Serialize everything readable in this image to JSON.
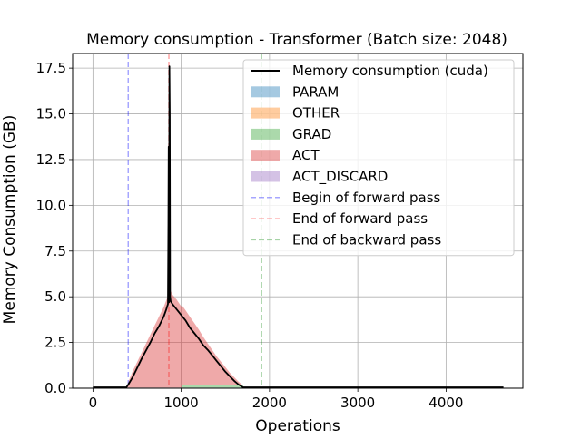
{
  "chart_data": {
    "type": "area",
    "title": "Memory consumption - Transformer (Batch size: 2048)",
    "xlabel": "Operations",
    "ylabel": "Memory Consumption (GB)",
    "xlim": [
      -230,
      4870
    ],
    "ylim": [
      0,
      18.3
    ],
    "x_ticks": [
      0,
      1000,
      2000,
      3000,
      4000
    ],
    "x_tick_labels": [
      "0",
      "1000",
      "2000",
      "3000",
      "4000"
    ],
    "y_ticks": [
      0.0,
      2.5,
      5.0,
      7.5,
      10.0,
      12.5,
      15.0,
      17.5
    ],
    "y_tick_labels": [
      "0.0",
      "2.5",
      "5.0",
      "7.5",
      "10.0",
      "12.5",
      "15.0",
      "17.5"
    ],
    "grid": true,
    "legend_position": "top-right",
    "series": [
      {
        "name": "Memory consumption (cuda)",
        "kind": "line",
        "color": "#000000",
        "points": [
          [
            0,
            0.05
          ],
          [
            380,
            0.05
          ],
          [
            400,
            0.2
          ],
          [
            450,
            0.6
          ],
          [
            500,
            1.1
          ],
          [
            550,
            1.6
          ],
          [
            600,
            2.05
          ],
          [
            650,
            2.5
          ],
          [
            700,
            3.0
          ],
          [
            750,
            3.4
          ],
          [
            800,
            3.9
          ],
          [
            830,
            4.3
          ],
          [
            850,
            4.6
          ],
          [
            855,
            9.0
          ],
          [
            858,
            13.2
          ],
          [
            862,
            4.7
          ],
          [
            866,
            17.6
          ],
          [
            870,
            15.0
          ],
          [
            874,
            5.0
          ],
          [
            880,
            4.75
          ],
          [
            900,
            4.6
          ],
          [
            950,
            4.3
          ],
          [
            1000,
            4.0
          ],
          [
            1050,
            3.7
          ],
          [
            1100,
            3.3
          ],
          [
            1150,
            3.0
          ],
          [
            1200,
            2.7
          ],
          [
            1250,
            2.35
          ],
          [
            1300,
            2.1
          ],
          [
            1350,
            1.8
          ],
          [
            1400,
            1.5
          ],
          [
            1450,
            1.2
          ],
          [
            1500,
            0.9
          ],
          [
            1550,
            0.65
          ],
          [
            1600,
            0.4
          ],
          [
            1650,
            0.2
          ],
          [
            1700,
            0.05
          ],
          [
            4650,
            0.05
          ]
        ]
      },
      {
        "name": "PARAM",
        "kind": "area",
        "color": "#1f77b4",
        "points": [
          [
            0,
            0.03
          ],
          [
            4650,
            0.03
          ]
        ]
      },
      {
        "name": "OTHER",
        "kind": "area",
        "color": "#ff7f0e",
        "points": [
          [
            0,
            0.0
          ],
          [
            4650,
            0.0
          ]
        ]
      },
      {
        "name": "GRAD",
        "kind": "area",
        "color": "#2ca02c",
        "points": [
          [
            0,
            0.0
          ],
          [
            1000,
            0.0
          ],
          [
            1010,
            0.12
          ],
          [
            1700,
            0.12
          ],
          [
            1710,
            0.0
          ],
          [
            4650,
            0.0
          ]
        ]
      },
      {
        "name": "ACT",
        "kind": "area",
        "color": "#d62728",
        "points": [
          [
            380,
            0.0
          ],
          [
            400,
            0.3
          ],
          [
            450,
            0.9
          ],
          [
            500,
            1.4
          ],
          [
            550,
            1.9
          ],
          [
            600,
            2.4
          ],
          [
            650,
            2.9
          ],
          [
            700,
            3.4
          ],
          [
            750,
            3.9
          ],
          [
            800,
            4.4
          ],
          [
            840,
            4.9
          ],
          [
            870,
            5.4
          ],
          [
            900,
            5.1
          ],
          [
            950,
            4.8
          ],
          [
            1000,
            4.45
          ],
          [
            1050,
            4.1
          ],
          [
            1100,
            3.75
          ],
          [
            1150,
            3.4
          ],
          [
            1200,
            3.05
          ],
          [
            1250,
            2.65
          ],
          [
            1300,
            2.3
          ],
          [
            1350,
            1.95
          ],
          [
            1400,
            1.6
          ],
          [
            1450,
            1.3
          ],
          [
            1500,
            1.0
          ],
          [
            1550,
            0.7
          ],
          [
            1600,
            0.45
          ],
          [
            1650,
            0.2
          ],
          [
            1700,
            0.0
          ]
        ]
      },
      {
        "name": "ACT_DISCARD",
        "kind": "area",
        "color": "#9467bd",
        "points": [
          [
            0,
            0.0
          ],
          [
            4650,
            0.0
          ]
        ]
      }
    ],
    "vlines": [
      {
        "name": "Begin of forward pass",
        "x": 400,
        "color": "#0000ff"
      },
      {
        "name": "End of forward pass",
        "x": 860,
        "color": "#ff0000"
      },
      {
        "name": "End of backward pass",
        "x": 1910,
        "color": "#008000"
      }
    ],
    "legend": [
      {
        "label": "Memory consumption (cuda)",
        "kind": "line",
        "color": "#000000"
      },
      {
        "label": "PARAM",
        "kind": "patch",
        "color": "#1f77b4"
      },
      {
        "label": "OTHER",
        "kind": "patch",
        "color": "#ff7f0e"
      },
      {
        "label": "GRAD",
        "kind": "patch",
        "color": "#2ca02c"
      },
      {
        "label": "ACT",
        "kind": "patch",
        "color": "#d62728"
      },
      {
        "label": "ACT_DISCARD",
        "kind": "patch",
        "color": "#9467bd"
      },
      {
        "label": "Begin of forward pass",
        "kind": "dashed",
        "color": "#0000ff"
      },
      {
        "label": "End of forward pass",
        "kind": "dashed",
        "color": "#ff0000"
      },
      {
        "label": "End of backward pass",
        "kind": "dashed",
        "color": "#008000"
      }
    ]
  }
}
